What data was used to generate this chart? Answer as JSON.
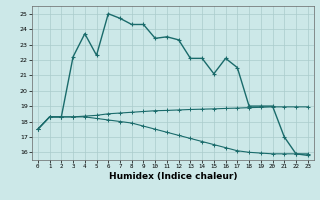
{
  "xlabel": "Humidex (Indice chaleur)",
  "bg_color": "#cce8e8",
  "grid_color": "#aacccc",
  "line_color": "#1a6b6b",
  "x_ticks": [
    0,
    1,
    2,
    3,
    4,
    5,
    6,
    7,
    8,
    9,
    10,
    11,
    12,
    13,
    14,
    15,
    16,
    17,
    18,
    19,
    20,
    21,
    22,
    23
  ],
  "xlim": [
    -0.5,
    23.5
  ],
  "ylim": [
    15.5,
    25.5
  ],
  "y_ticks": [
    16,
    17,
    18,
    19,
    20,
    21,
    22,
    23,
    24,
    25
  ],
  "line1_x": [
    0,
    1,
    2,
    3,
    4,
    5,
    6,
    7,
    8,
    9,
    10,
    11,
    12,
    13,
    14,
    15,
    16,
    17,
    18,
    19,
    20,
    21,
    22,
    23
  ],
  "line1_y": [
    17.5,
    18.3,
    18.3,
    18.3,
    18.35,
    18.4,
    18.5,
    18.55,
    18.6,
    18.65,
    18.7,
    18.72,
    18.75,
    18.78,
    18.8,
    18.82,
    18.85,
    18.87,
    18.9,
    18.92,
    18.95,
    18.95,
    18.95,
    18.95
  ],
  "line2_x": [
    0,
    1,
    2,
    3,
    4,
    5,
    6,
    7,
    8,
    9,
    10,
    11,
    12,
    13,
    14,
    15,
    16,
    17,
    18,
    19,
    20,
    21,
    22,
    23
  ],
  "line2_y": [
    17.5,
    18.3,
    18.3,
    18.3,
    18.3,
    18.2,
    18.1,
    18.0,
    17.9,
    17.7,
    17.5,
    17.3,
    17.1,
    16.9,
    16.7,
    16.5,
    16.3,
    16.1,
    16.0,
    15.95,
    15.9,
    15.9,
    15.9,
    15.9
  ],
  "line3_x": [
    0,
    1,
    2,
    3,
    4,
    5,
    6,
    7,
    8,
    9,
    10,
    11,
    12,
    13,
    14,
    15,
    16,
    17,
    18,
    19,
    20,
    21,
    22,
    23
  ],
  "line3_y": [
    17.5,
    18.3,
    18.3,
    22.2,
    23.7,
    22.3,
    25.0,
    24.7,
    24.3,
    24.3,
    23.4,
    23.5,
    23.3,
    22.1,
    22.1,
    21.1,
    22.1,
    21.5,
    19.0,
    19.0,
    19.0,
    17.0,
    15.9,
    15.8
  ]
}
